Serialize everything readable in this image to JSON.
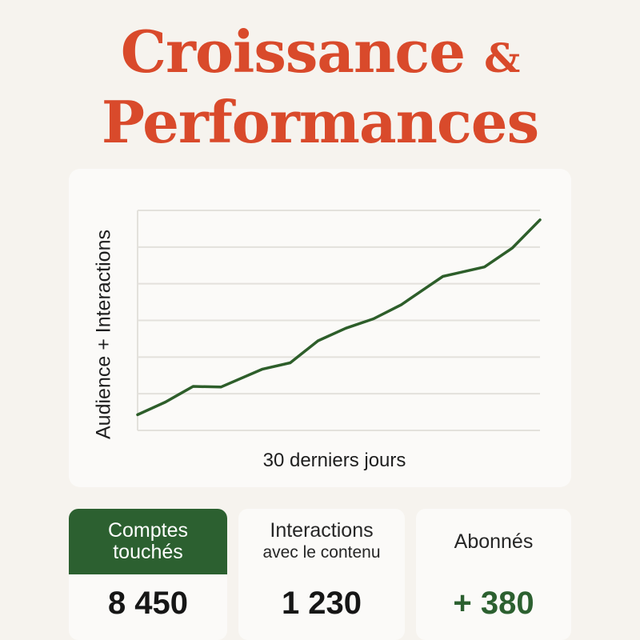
{
  "title": {
    "line1": "Croissance",
    "amp": "&",
    "line2": "Performances"
  },
  "colors": {
    "title": "#d94a2b",
    "line": "#2d5e2a",
    "accent_green": "#2c6030",
    "grid": "#e3e1dc"
  },
  "chart_data": {
    "type": "line",
    "xlabel": "30 derniers jours",
    "ylabel": "Audience + Interactions",
    "x": [
      1,
      3,
      4,
      5,
      7,
      10,
      12,
      13,
      14,
      16,
      18,
      20,
      22,
      23,
      24,
      26,
      28,
      30
    ],
    "values": [
      0,
      4,
      6.5,
      9,
      8.8,
      14.5,
      16.5,
      20,
      23.5,
      27.5,
      30.5,
      35,
      41,
      44,
      45,
      47,
      53,
      62
    ],
    "xlim": [
      1,
      30
    ],
    "ylim": [
      -5,
      65
    ],
    "grid": "horizontal"
  },
  "stats": [
    {
      "label_line1": "Comptes",
      "label_line2": "touchés",
      "value": "8 450"
    },
    {
      "label_line1": "Interactions",
      "label_line2": "avec le contenu",
      "value": "1 230"
    },
    {
      "label_line1": "Abonnés",
      "label_line2": "",
      "value": "+ 380"
    }
  ]
}
